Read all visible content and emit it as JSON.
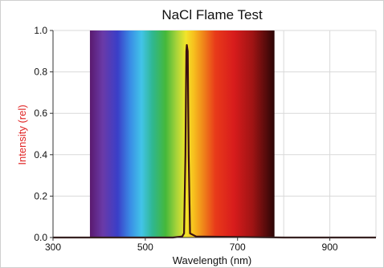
{
  "chart_data": {
    "type": "line",
    "title": "NaCl Flame Test",
    "xlabel": "Wavelength (nm)",
    "ylabel": "Intensity (rel)",
    "xlim": [
      300,
      1000
    ],
    "ylim": [
      0,
      1.0
    ],
    "x_ticks": [
      300,
      500,
      700,
      900
    ],
    "x_tick_labels": [
      "300",
      "500",
      "700",
      "900"
    ],
    "y_ticks": [
      0,
      0.2,
      0.4,
      0.6,
      0.8,
      1.0
    ],
    "y_tick_labels": [
      "0.0",
      "0.2",
      "0.4",
      "0.6",
      "0.8",
      "1.0"
    ],
    "grid": true,
    "background_spectrum": {
      "x_start": 380,
      "x_end": 780
    },
    "series": [
      {
        "color": "#3a1010",
        "x": [
          300,
          560,
          580,
          584,
          587,
          589,
          590,
          592,
          594,
          597,
          610,
          800,
          1000
        ],
        "y": [
          0,
          0,
          0.005,
          0.02,
          0.4,
          0.9,
          0.93,
          0.9,
          0.4,
          0.02,
          0.005,
          0,
          0
        ]
      }
    ],
    "colors": {
      "ylabel": "#e02424",
      "axis": "#333333",
      "grid": "#d9d9d9",
      "line": "#3a1010"
    }
  }
}
